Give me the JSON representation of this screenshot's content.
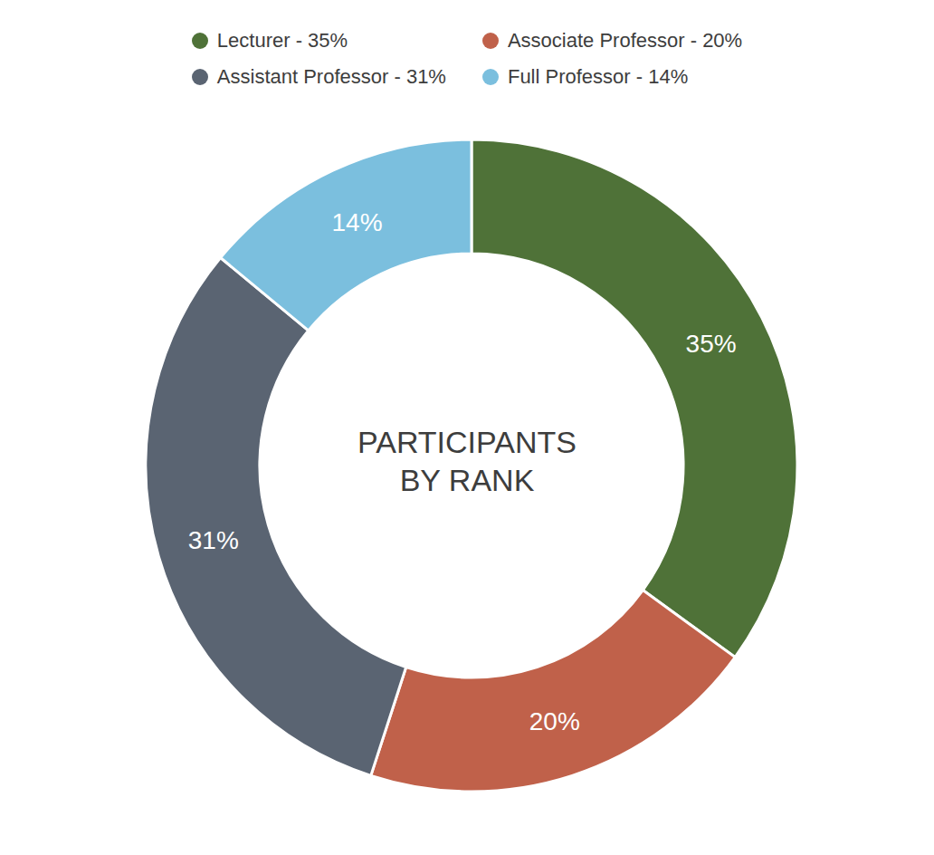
{
  "chart_data": {
    "type": "donut",
    "categories": [
      "Lecturer - 35%",
      "Associate Professor - 20%",
      "Assistant Professor - 31%",
      "Full Professor - 14%"
    ],
    "values": [
      35,
      20,
      31,
      14
    ],
    "value_labels": [
      "35%",
      "20%",
      "31%",
      "14%"
    ],
    "colors": [
      "#4f7238",
      "#c0614a",
      "#5a6472",
      "#7bbfde"
    ],
    "data_labels": true,
    "legend": "top",
    "annotations": [
      "PARTICIPANTS\nBY RANK"
    ]
  }
}
